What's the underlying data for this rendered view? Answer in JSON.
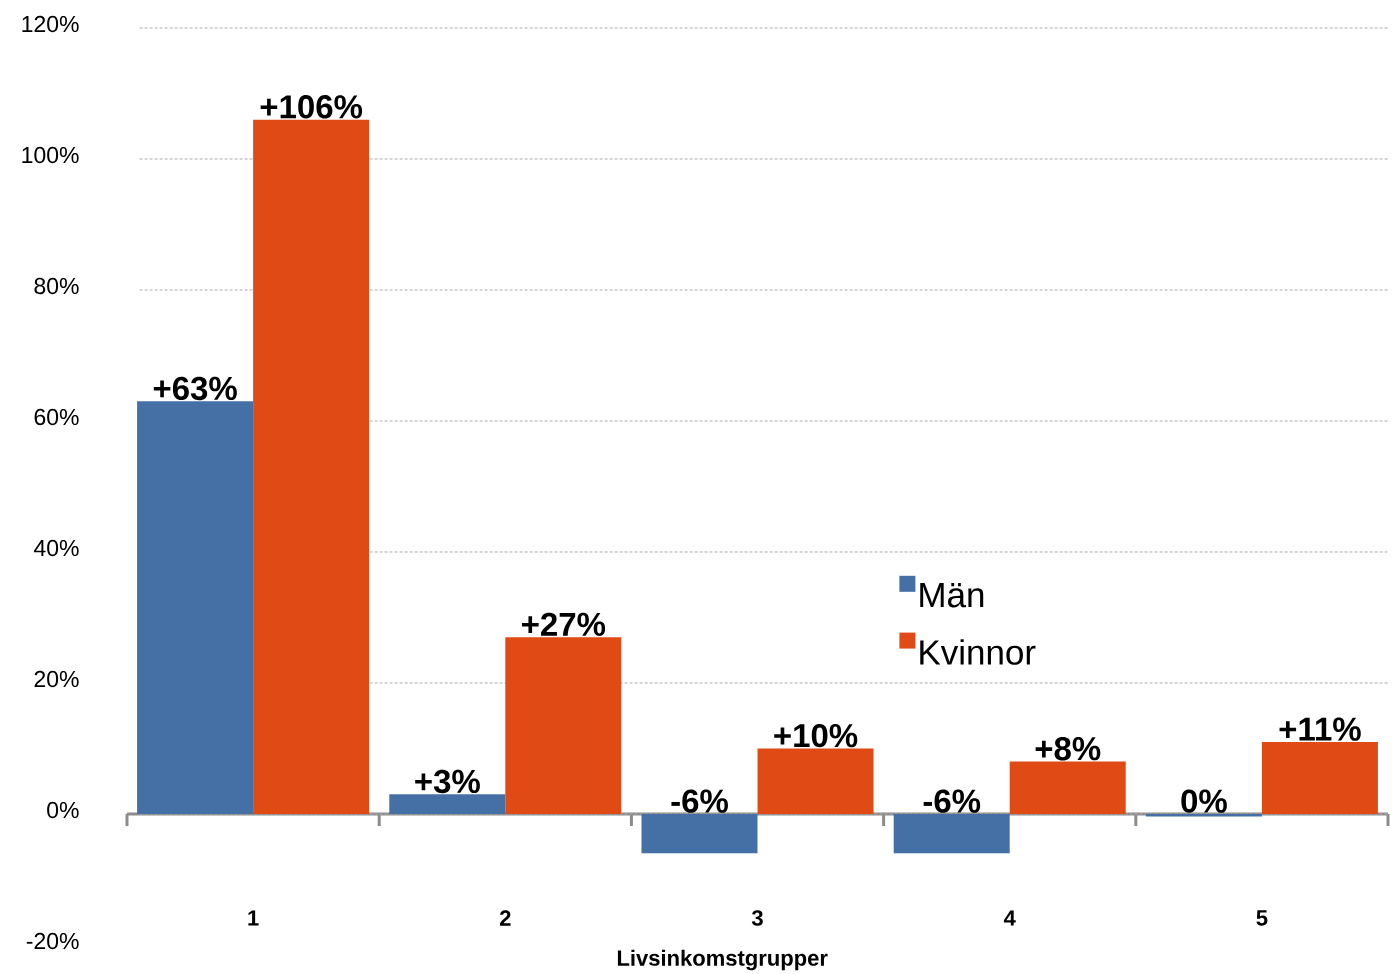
{
  "chart_data": {
    "type": "bar",
    "xlabel": "Livsinkomstgrupper",
    "categories": [
      "1",
      "2",
      "3",
      "4",
      "5"
    ],
    "series": [
      {
        "name": "Män",
        "color": "#4470a5",
        "values": [
          63,
          3,
          -6,
          -6,
          -0.4
        ],
        "value_labels": [
          "+63%",
          "+3%",
          "-6%",
          "-6%",
          "0%"
        ]
      },
      {
        "name": "Kvinnor",
        "color": "#e04a14",
        "values": [
          106,
          27,
          10,
          8,
          11
        ],
        "value_labels": [
          "+106%",
          "+27%",
          "+10%",
          "+8%",
          "+11%"
        ]
      }
    ],
    "ylim": [
      -20,
      120
    ],
    "yticks": [
      {
        "value": -20,
        "label": "-20%"
      },
      {
        "value": 0,
        "label": "0%"
      },
      {
        "value": 20,
        "label": "20%"
      },
      {
        "value": 40,
        "label": "40%"
      },
      {
        "value": 60,
        "label": "60%"
      },
      {
        "value": 80,
        "label": "80%"
      },
      {
        "value": 100,
        "label": "100%"
      },
      {
        "value": 120,
        "label": "120%"
      }
    ],
    "grid": "y",
    "legend": "right"
  }
}
